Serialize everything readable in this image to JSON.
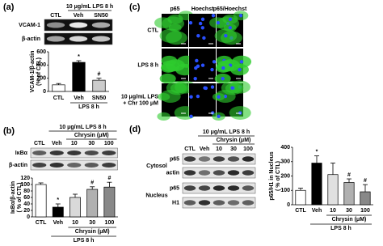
{
  "panels": {
    "a": {
      "label": "(a)",
      "blot": {
        "header": "10 μg/mL LPS 8 h",
        "lanes": [
          "CTL",
          "Veh",
          "SN50"
        ],
        "rows": [
          "VCAM-1",
          "β-actin"
        ]
      }
    },
    "b": {
      "label": "(b)",
      "blot": {
        "header": "10 μg/mL LPS 8 h",
        "subheader": "Chrysin (μM)",
        "lanes": [
          "CTL",
          "Veh",
          "10",
          "30",
          "100"
        ],
        "rows": [
          "IκBα",
          "β-actin"
        ]
      }
    },
    "c": {
      "label": "(c)",
      "columns": [
        "p65",
        "Hoechst",
        "p65/Hoechst"
      ],
      "rows": [
        [
          "CTL"
        ],
        [
          "LPS 8 h"
        ],
        [
          "10 μg/mL LPS",
          "+ Chr 100 μM"
        ]
      ]
    },
    "d": {
      "label": "(d)",
      "blot": {
        "header": "10 μg/mL LPS 8 h",
        "subheader": "Chrysin (μM)",
        "lanes": [
          "CTL",
          "Veh",
          "10",
          "30",
          "100"
        ],
        "groups": [
          {
            "name": "Cytosol",
            "rows": [
              "p65",
              "actin"
            ]
          },
          {
            "name": "Nucleus",
            "rows": [
              "p65",
              "H1"
            ]
          }
        ]
      }
    }
  },
  "chart_data": [
    {
      "type": "bar",
      "ylabel": [
        "VCAM-1/β-actin",
        "(% of CTL)"
      ],
      "categories": [
        "CTL",
        "Veh",
        "SN50"
      ],
      "values": [
        100,
        440,
        170
      ],
      "errors": [
        20,
        25,
        30
      ],
      "markers": [
        null,
        "*",
        "#"
      ],
      "colors": [
        "#ffffff",
        "#000000",
        "#cccccc"
      ],
      "ylim": [
        0,
        600
      ],
      "yticks": [
        0,
        200,
        400,
        600
      ],
      "x_groups": [
        "LPS 8 h"
      ]
    },
    {
      "type": "bar",
      "ylabel": [
        "IκBα/β-actin",
        "( % of CTL)"
      ],
      "categories": [
        "CTL",
        "Veh",
        "10",
        "30",
        "100"
      ],
      "values": [
        100,
        30,
        60,
        85,
        92
      ],
      "errors": [
        5,
        10,
        10,
        8,
        15
      ],
      "markers": [
        null,
        "*",
        null,
        "#",
        "#"
      ],
      "colors": [
        "#ffffff",
        "#000000",
        "#d9d9d9",
        "#b0b0b0",
        "#888888"
      ],
      "ylim": [
        0,
        120
      ],
      "yticks": [
        0,
        20,
        40,
        60,
        80,
        100,
        120
      ],
      "x_groups": [
        "Chrysin (μM)",
        "LPS 8 h"
      ]
    },
    {
      "type": "bar",
      "ylabel": [
        "p65/H1 in Nucleus",
        "( % of CTL)"
      ],
      "categories": [
        "CTL",
        "Veh",
        "10",
        "30",
        "100"
      ],
      "values": [
        100,
        290,
        210,
        155,
        90
      ],
      "errors": [
        15,
        50,
        80,
        25,
        50
      ],
      "markers": [
        null,
        "*",
        null,
        "#",
        "#"
      ],
      "colors": [
        "#ffffff",
        "#000000",
        "#e0e0e0",
        "#b0b0b0",
        "#888888"
      ],
      "ylim": [
        0,
        400
      ],
      "yticks": [
        0,
        100,
        200,
        300,
        400
      ],
      "x_groups": [
        "Chrysin (μM)",
        "LPS 8 h"
      ]
    }
  ]
}
